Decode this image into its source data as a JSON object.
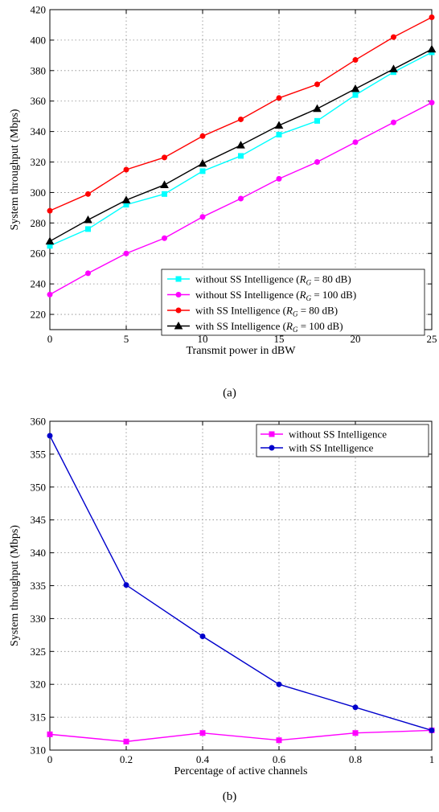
{
  "chart_data": [
    {
      "type": "line",
      "caption": "(a)",
      "xlabel": "Transmit power in dBW",
      "ylabel": "System throughput (Mbps)",
      "xlim": [
        0,
        25
      ],
      "ylim": [
        210,
        420
      ],
      "xticks": [
        0,
        5,
        10,
        15,
        20,
        25
      ],
      "yticks": [
        220,
        240,
        260,
        280,
        300,
        320,
        340,
        360,
        380,
        400,
        420
      ],
      "grid": true,
      "legend_position": "lower-right",
      "x": [
        0,
        2.5,
        5,
        7.5,
        10,
        12.5,
        15,
        17.5,
        20,
        22.5,
        25
      ],
      "series": [
        {
          "name": "without SS Intelligence (R_G = 80 dB)",
          "legend_prefix": "without SS Intelligence (",
          "legend_suffix": " = 80 dB)",
          "color": "#00ffff",
          "marker": "square",
          "values": [
            265,
            276,
            292,
            299,
            314,
            324,
            338,
            347,
            364,
            379,
            392
          ]
        },
        {
          "name": "without SS Intelligence (R_G = 100 dB)",
          "legend_prefix": "without SS Intelligence (",
          "legend_suffix": " = 100 dB)",
          "color": "#ff00ff",
          "marker": "circle",
          "values": [
            233,
            247,
            260,
            270,
            284,
            296,
            309,
            320,
            333,
            346,
            359
          ]
        },
        {
          "name": "with SS Intelligence (R_G = 80 dB)",
          "legend_prefix": "with SS Intelligence (",
          "legend_suffix": " = 80 dB)",
          "color": "#ff0000",
          "marker": "circle",
          "values": [
            288,
            299,
            315,
            323,
            337,
            348,
            362,
            371,
            387,
            402,
            415
          ]
        },
        {
          "name": "with SS Intelligence (R_G = 100 dB)",
          "legend_prefix": "with SS Intelligence (",
          "legend_suffix": " = 100 dB)",
          "color": "#000000",
          "marker": "triangle",
          "values": [
            268,
            282,
            295,
            305,
            319,
            331,
            344,
            355,
            368,
            381,
            394
          ]
        }
      ]
    },
    {
      "type": "line",
      "caption": "(b)",
      "xlabel": "Percentage of active channels",
      "ylabel": "System throughput (Mbps)",
      "xlim": [
        0,
        1
      ],
      "ylim": [
        310,
        360
      ],
      "xticks": [
        0,
        0.2,
        0.4,
        0.6,
        0.8,
        1
      ],
      "yticks": [
        310,
        315,
        320,
        325,
        330,
        335,
        340,
        345,
        350,
        355,
        360
      ],
      "grid": true,
      "legend_position": "top-right",
      "x": [
        0,
        0.2,
        0.4,
        0.6,
        0.8,
        1
      ],
      "series": [
        {
          "name": "without SS Intelligence",
          "color": "#ff00ff",
          "marker": "square",
          "values": [
            312.4,
            311.3,
            312.6,
            311.5,
            312.6,
            313.0
          ]
        },
        {
          "name": "with SS Intelligence",
          "color": "#0000cc",
          "marker": "circle",
          "values": [
            357.8,
            335.1,
            327.3,
            320.0,
            316.5,
            313.0
          ]
        }
      ]
    }
  ]
}
